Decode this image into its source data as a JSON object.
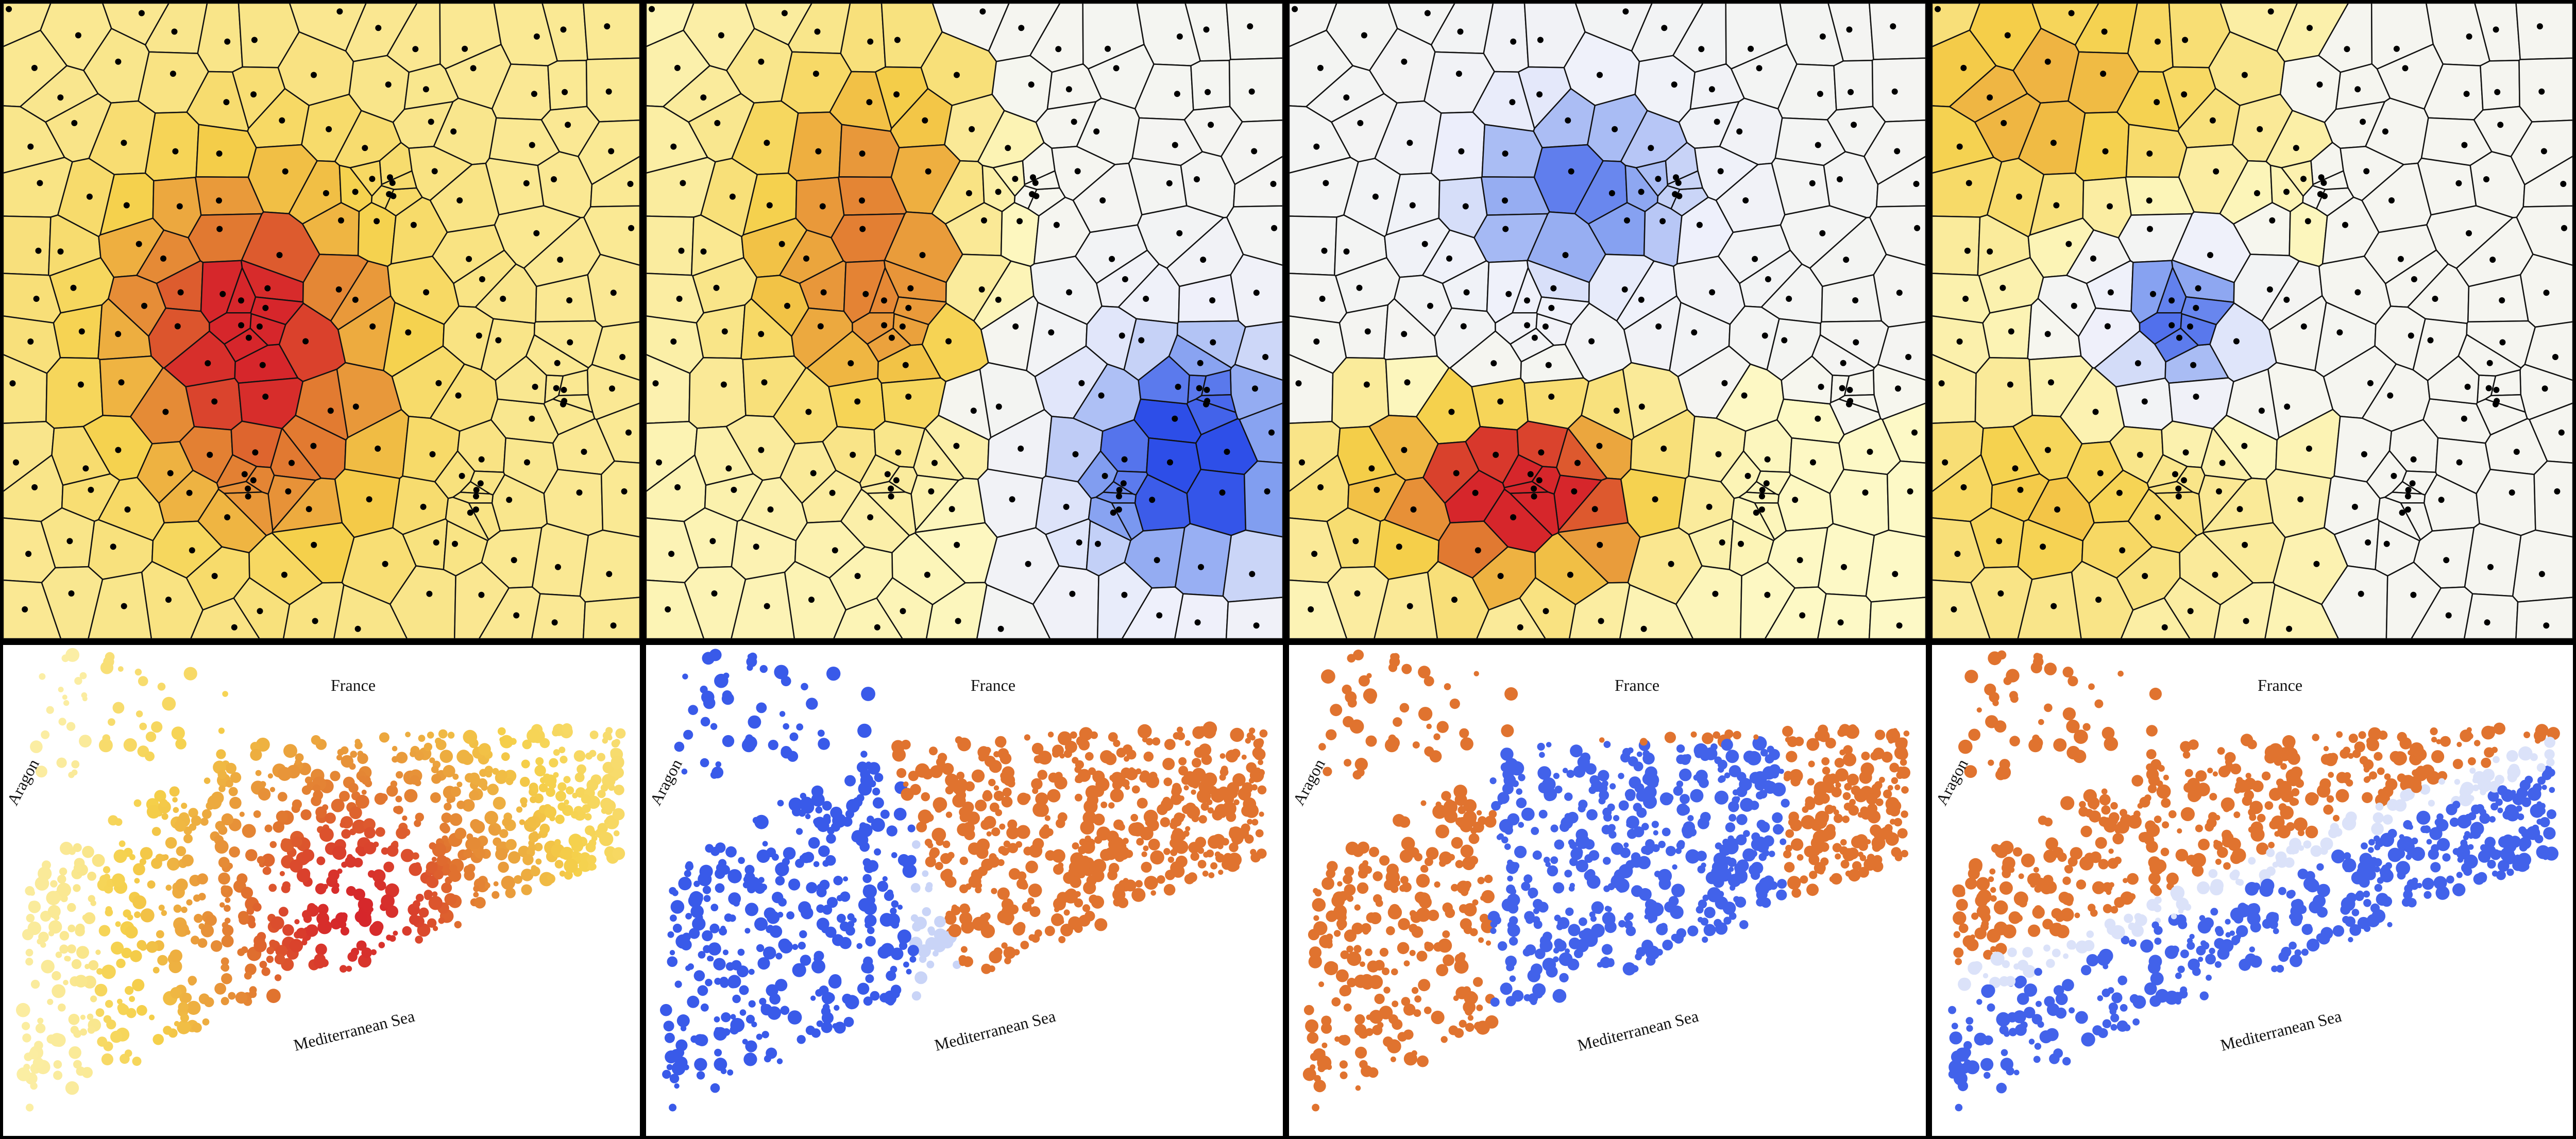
{
  "figure": {
    "columns": 4,
    "rows": 2
  },
  "map_labels": {
    "north": "France",
    "west": "Aragon",
    "south": "Mediterranean Sea"
  },
  "colors": {
    "warm_light": "#fdf9c6",
    "warm_mid": "#f5d04a",
    "warm_orange": "#e0732f",
    "warm_red": "#d6262b",
    "cool_light": "#eef0fb",
    "cool_mid": "#7f9cf0",
    "cool_dark": "#2d4ee8",
    "neutral": "#f6f6ee",
    "cell_stroke": "#111111",
    "site_dot": "#000000"
  },
  "panels": [
    {
      "id": "A",
      "pattern": "center-hotspot-warm"
    },
    {
      "id": "B",
      "pattern": "west-warm-east-cool"
    },
    {
      "id": "C",
      "pattern": "south-warm-north-cool"
    },
    {
      "id": "D",
      "pattern": "center-cool-edge-warm"
    }
  ]
}
